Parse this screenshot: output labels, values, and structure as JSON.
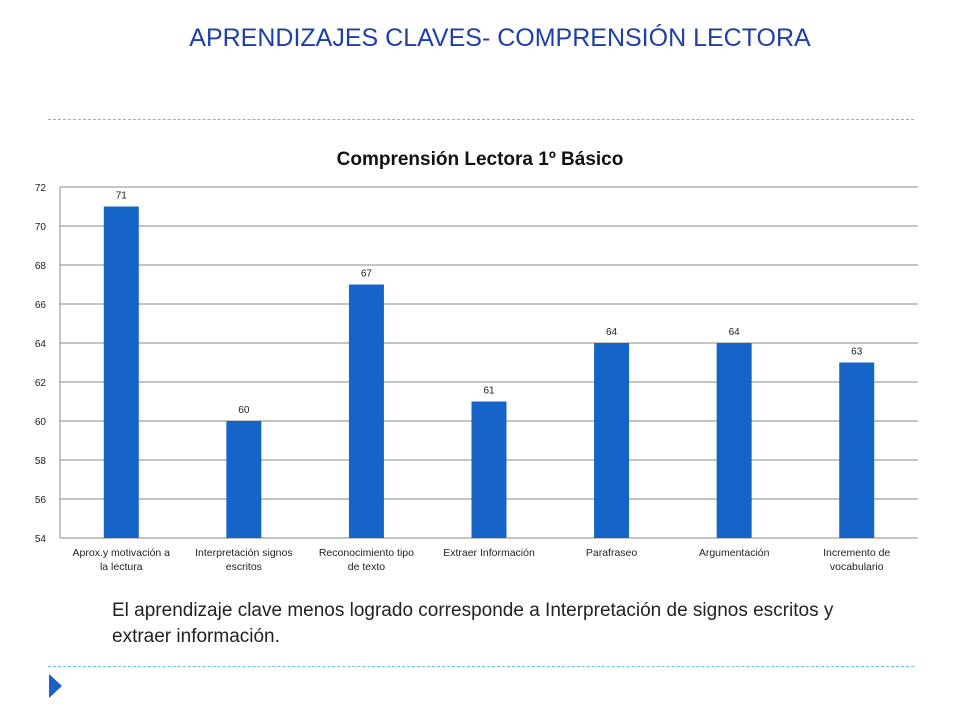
{
  "slide": {
    "title": "APRENDIZAJES  CLAVES- COMPRENSIÓN LECTORA",
    "caption": "El aprendizaje clave menos logrado corresponde a Interpretación de signos escritos y extraer información.",
    "accent_color": "#1f3fa8",
    "divider_color": "#6cc3d3",
    "bullet_icon": "triangle-arrow-icon"
  },
  "chart_data": {
    "type": "bar",
    "title": "Comprensión Lectora 1º Básico",
    "categories": [
      [
        "Aprox.y motivación a",
        "la lectura"
      ],
      [
        "Interpretación signos",
        "escritos"
      ],
      [
        "Reconocimiento tipo",
        "de texto"
      ],
      [
        "Extraer Información"
      ],
      [
        "Parafraseo"
      ],
      [
        "Argumentación"
      ],
      [
        "Incremento de",
        "vocabulario"
      ]
    ],
    "values": [
      71,
      60,
      67,
      61,
      64,
      64,
      63
    ],
    "data_labels": [
      "71",
      "60",
      "67",
      "61",
      "64",
      "64",
      "63"
    ],
    "ylim": [
      54,
      72
    ],
    "yticks": [
      54,
      56,
      58,
      60,
      62,
      64,
      66,
      68,
      70,
      72
    ],
    "grid": true,
    "legend": "none",
    "bar_color": "#1565c8"
  }
}
